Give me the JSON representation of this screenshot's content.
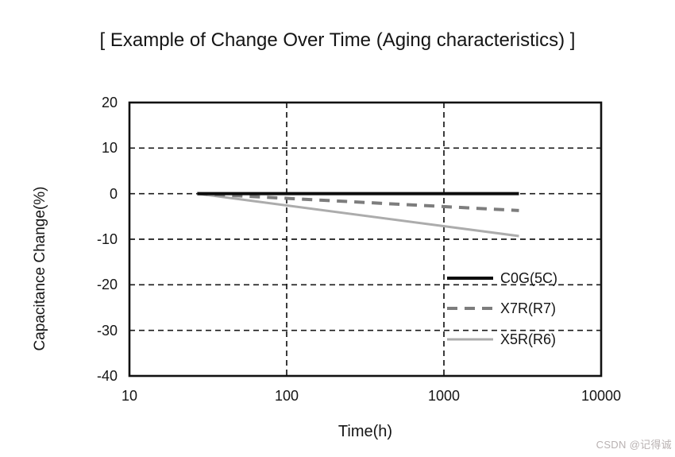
{
  "page": {
    "watermark": "CSDN @记得诚"
  },
  "chart_data": {
    "type": "line",
    "title": "[ Example of Change Over Time (Aging characteristics) ]",
    "xlabel": "Time(h)",
    "ylabel": "Capacitance Change(%)",
    "x_scale": "log",
    "xlim": [
      10,
      10000
    ],
    "ylim": [
      -40,
      20
    ],
    "x_ticks": [
      10,
      100,
      1000,
      10000
    ],
    "y_ticks": [
      20,
      10,
      0,
      -10,
      -20,
      -30,
      -40
    ],
    "grid": true,
    "grid_style": "dashed",
    "legend_position": "inside-right",
    "frame_color": "#111111",
    "grid_color": "#1a1a1a",
    "series": [
      {
        "name": "C0G(5C)",
        "color": "#0d0d0d",
        "style": "solid",
        "width": 4,
        "points": [
          [
            27,
            0
          ],
          [
            3000,
            0
          ]
        ]
      },
      {
        "name": "X7R(R7)",
        "color": "#7d7d7d",
        "style": "dashed",
        "width": 4,
        "points": [
          [
            27,
            0
          ],
          [
            3000,
            -3.7
          ]
        ]
      },
      {
        "name": "X5R(R6)",
        "color": "#acacac",
        "style": "solid",
        "width": 3,
        "points": [
          [
            27,
            0
          ],
          [
            3000,
            -9.3
          ]
        ]
      }
    ]
  }
}
